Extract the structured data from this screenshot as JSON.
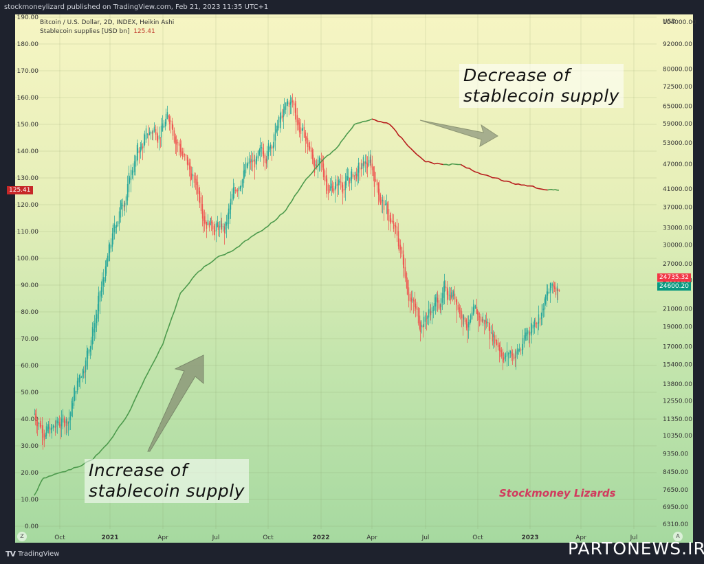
{
  "header": {
    "publisher_line": "stockmoneylizard published on TradingView.com, Feb 21, 2023 11:35 UTC+1"
  },
  "legend": {
    "symbol_line": "Bitcoin / U.S. Dollar, 2D, INDEX, Heikin Ashi",
    "indicator_name": "Stablecoin supplies [USD bn]",
    "indicator_value": "125.41"
  },
  "badges": {
    "left_current": "125.41",
    "right_last": "24735.32",
    "right_close": "24600.20"
  },
  "annotations": {
    "decrease": [
      "Decrease of",
      "stablecoin supply"
    ],
    "increase": [
      "Increase of",
      "stablecoin supply"
    ],
    "brand": "Stockmoney Lizards"
  },
  "footer": {
    "tradingview_label": "TradingView",
    "watermark": "PARTONEWS.IR",
    "left_scale_btn": "Z",
    "right_scale_btn": "A"
  },
  "colors": {
    "up_candle": "#26a69a",
    "down_candle": "#ef5350",
    "stable_up": "#4c9a4c",
    "stable_down": "#b71c1c",
    "left_badge": "#c62828",
    "right_last_badge": "#f23645",
    "right_close_badge": "#089981"
  },
  "chart_data": {
    "type": "line",
    "title": "Bitcoin / U.S. Dollar, 2D, INDEX, Heikin Ashi",
    "series": [
      {
        "name": "Stablecoin supplies [USD bn]",
        "axis": "left",
        "x": [
          "2020-08-15",
          "2020-09-01",
          "2020-10-01",
          "2020-11-01",
          "2020-12-01",
          "2021-01-01",
          "2021-02-01",
          "2021-03-01",
          "2021-04-01",
          "2021-05-01",
          "2021-06-01",
          "2021-07-01",
          "2021-08-01",
          "2021-09-01",
          "2021-10-01",
          "2021-11-01",
          "2021-12-01",
          "2022-01-01",
          "2022-02-01",
          "2022-03-01",
          "2022-04-01",
          "2022-05-01",
          "2022-06-01",
          "2022-07-01",
          "2022-08-01",
          "2022-09-01",
          "2022-10-01",
          "2022-11-01",
          "2022-12-01",
          "2023-01-01",
          "2023-02-01",
          "2023-02-21"
        ],
        "values": [
          11.5,
          18,
          20,
          22,
          25,
          32,
          42,
          55,
          68,
          87,
          95,
          100,
          103,
          108,
          112,
          118,
          128,
          136,
          142,
          150,
          152,
          150,
          142,
          136,
          135,
          135,
          132,
          130,
          128,
          127,
          125.5,
          125.41
        ]
      },
      {
        "name": "BTC/USD Heikin Ashi (approx close)",
        "axis": "right",
        "x": [
          "2020-08-15",
          "2020-09-15",
          "2020-10-15",
          "2020-11-15",
          "2020-12-15",
          "2021-01-15",
          "2021-02-15",
          "2021-03-15",
          "2021-04-15",
          "2021-05-15",
          "2021-06-15",
          "2021-07-15",
          "2021-08-15",
          "2021-09-15",
          "2021-10-15",
          "2021-11-10",
          "2021-12-15",
          "2022-01-15",
          "2022-02-15",
          "2022-03-28",
          "2022-05-15",
          "2022-06-18",
          "2022-07-15",
          "2022-08-15",
          "2022-09-15",
          "2022-10-15",
          "2022-11-20",
          "2022-12-15",
          "2023-01-15",
          "2023-02-21"
        ],
        "values": [
          11700,
          10500,
          11500,
          16000,
          23000,
          36000,
          50000,
          57000,
          61000,
          45000,
          36000,
          32000,
          46000,
          47000,
          58000,
          66000,
          49000,
          42000,
          43000,
          47000,
          30000,
          19500,
          21500,
          23500,
          19500,
          19500,
          16300,
          16800,
          21000,
          24600
        ]
      }
    ],
    "left_axis": {
      "label": "",
      "ticks": [
        190,
        180,
        170,
        160,
        150,
        140,
        130,
        120,
        110,
        100,
        90,
        80,
        70,
        60,
        50,
        40,
        30,
        20,
        10,
        0
      ]
    },
    "right_axis": {
      "label": "USD",
      "scale": "log",
      "ticks": [
        104000,
        92000,
        80000,
        72500,
        65000,
        59000,
        53000,
        47000,
        41000,
        37000,
        33000,
        30000,
        27000,
        24600,
        21000,
        19000,
        17000,
        15400,
        13800,
        12550,
        11350,
        10350,
        9350,
        8450,
        7650,
        6950,
        6310
      ]
    },
    "x_axis": {
      "ticks": [
        "Oct",
        "2021",
        "Apr",
        "Jul",
        "Oct",
        "2022",
        "Apr",
        "Jul",
        "Oct",
        "2023",
        "Apr",
        "Jul"
      ],
      "bold_ticks": [
        "2021",
        "2022",
        "2023"
      ]
    },
    "grid": true
  }
}
